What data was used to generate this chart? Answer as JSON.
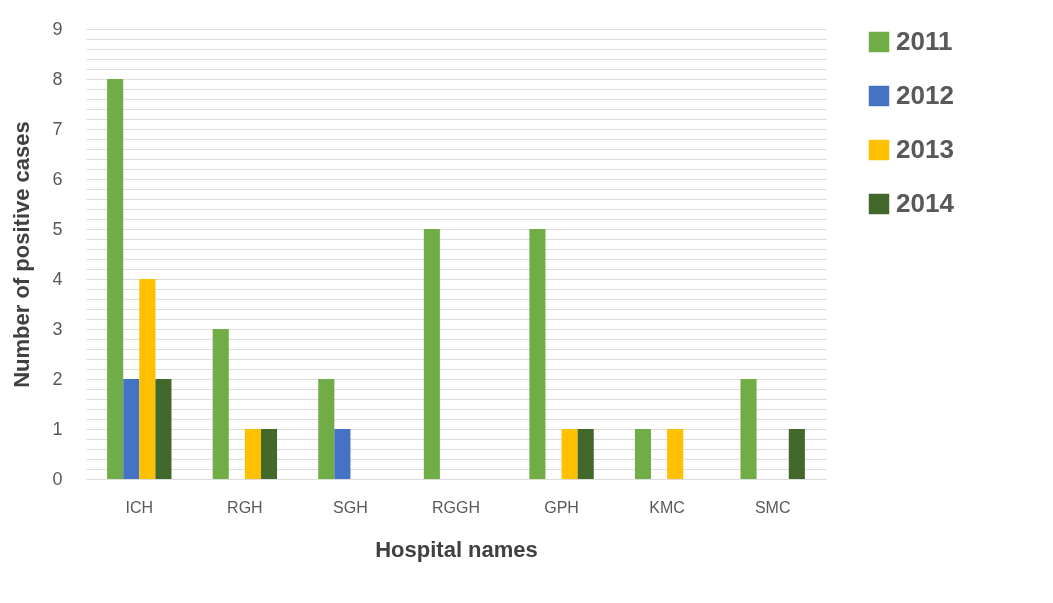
{
  "chart_data": {
    "type": "bar",
    "xlabel": "Hospital names",
    "ylabel": "Number of positive cases",
    "categories": [
      "ICH",
      "RGH",
      "SGH",
      "RGGH",
      "GPH",
      "KMC",
      "SMC"
    ],
    "series": [
      {
        "name": "2011",
        "color": "#70ad47",
        "values": [
          8,
          3,
          2,
          5,
          5,
          1,
          2
        ]
      },
      {
        "name": "2012",
        "color": "#4472c4",
        "values": [
          2,
          0,
          1,
          0,
          0,
          0,
          0
        ]
      },
      {
        "name": "2013",
        "color": "#ffc000",
        "values": [
          4,
          1,
          0,
          0,
          1,
          1,
          0
        ]
      },
      {
        "name": "2014",
        "color": "#43682b",
        "values": [
          2,
          1,
          0,
          0,
          1,
          0,
          1
        ]
      }
    ],
    "ylim": [
      0,
      9
    ],
    "yticks": [
      0,
      {
        "value": 0.2,
        "label": null
      },
      {
        "value": 0.4,
        "label": null
      },
      {
        "value": 0.6,
        "label": null
      },
      {
        "value": 0.8,
        "label": null
      },
      1,
      {
        "value": 1.2,
        "label": null
      },
      {
        "value": 1.4,
        "label": null
      },
      {
        "value": 1.6,
        "label": null
      },
      {
        "value": 1.8,
        "label": null
      },
      2,
      {
        "value": 2.2,
        "label": null
      },
      {
        "value": 2.4,
        "label": null
      },
      {
        "value": 2.6,
        "label": null
      },
      {
        "value": 2.8,
        "label": null
      },
      3,
      {
        "value": 3.2,
        "label": null
      },
      {
        "value": 3.4,
        "label": null
      },
      {
        "value": 3.6,
        "label": null
      },
      {
        "value": 3.8,
        "label": null
      },
      4,
      {
        "value": 4.2,
        "label": null
      },
      {
        "value": 4.4,
        "label": null
      },
      {
        "value": 4.6,
        "label": null
      },
      {
        "value": 4.8,
        "label": null
      },
      5,
      {
        "value": 5.2,
        "label": null
      },
      {
        "value": 5.4,
        "label": null
      },
      {
        "value": 5.6,
        "label": null
      },
      {
        "value": 5.8,
        "label": null
      },
      6,
      {
        "value": 6.2,
        "label": null
      },
      {
        "value": 6.4,
        "label": null
      },
      {
        "value": 6.6,
        "label": null
      },
      {
        "value": 6.8,
        "label": null
      },
      7,
      {
        "value": 7.2,
        "label": null
      },
      {
        "value": 7.4,
        "label": null
      },
      {
        "value": 7.6,
        "label": null
      },
      {
        "value": 7.8,
        "label": null
      },
      8,
      {
        "value": 8.2,
        "label": null
      },
      {
        "value": 8.4,
        "label": null
      },
      {
        "value": 8.6,
        "label": null
      },
      {
        "value": 8.8,
        "label": null
      },
      9
    ],
    "grid": true,
    "legend": "right"
  }
}
